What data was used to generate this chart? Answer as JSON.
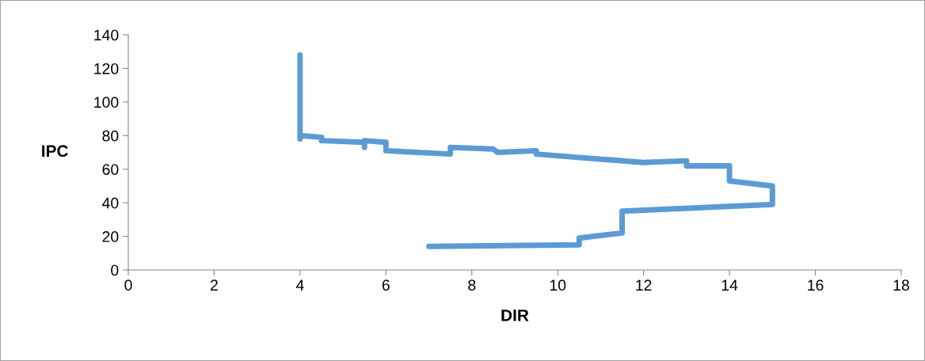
{
  "chart_data": {
    "type": "line",
    "xlabel": "DIR",
    "ylabel": "IPC",
    "x": [
      7,
      10.5,
      10.5,
      11.5,
      11.5,
      15,
      15,
      14,
      14,
      13,
      13,
      12,
      9.5,
      9.5,
      8.6,
      8.5,
      7.5,
      7.5,
      6,
      6,
      5.5,
      5.5,
      5.5,
      4.5,
      4.5,
      4,
      4,
      4,
      4,
      4,
      4
    ],
    "series": [
      {
        "color": "#5b9bd5",
        "values": [
          14,
          15,
          19,
          22,
          35,
          39,
          50,
          53,
          62,
          62,
          65,
          64,
          69,
          71,
          70,
          72,
          73,
          69,
          71,
          76,
          77,
          73,
          76,
          77,
          79,
          80,
          78,
          84,
          99,
          118,
          128
        ]
      }
    ],
    "xlim": [
      0,
      18
    ],
    "xticks": [
      0,
      2,
      4,
      6,
      8,
      10,
      12,
      14,
      16,
      18
    ],
    "ylim": [
      0,
      140
    ],
    "yticks": [
      0,
      20,
      40,
      60,
      80,
      100,
      120,
      140
    ],
    "grid": false,
    "legend": false,
    "marker": "none",
    "line_style": "solid"
  }
}
